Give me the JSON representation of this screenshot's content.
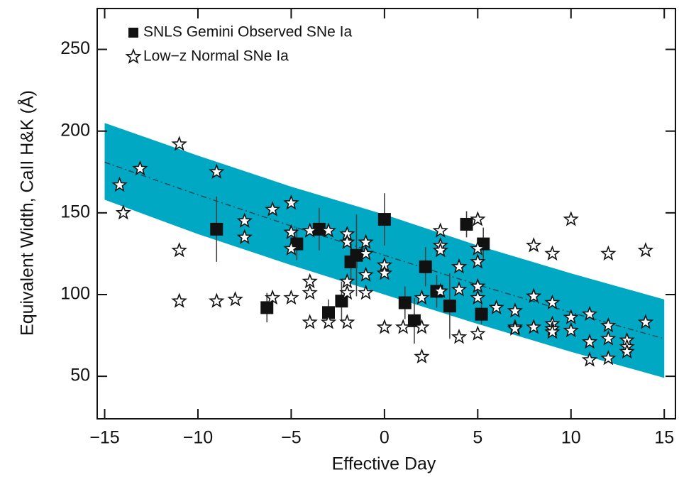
{
  "chart_data": {
    "type": "scatter",
    "x_label": "Effective Day",
    "y_label": "Equivalent Width,  CaII H&K (Å)",
    "xlim": [
      -15.4,
      15.6
    ],
    "ylim": [
      24,
      275
    ],
    "xticks": [
      {
        "value": -15,
        "label": "−15"
      },
      {
        "value": -10,
        "label": "−10"
      },
      {
        "value": -5,
        "label": "−5"
      },
      0,
      5,
      10,
      15
    ],
    "yticks": [
      50,
      100,
      150,
      200,
      250
    ],
    "legend": "upper left",
    "band": {
      "color": "#00a8c4",
      "line_color": "#1a4a55",
      "x": [
        -15,
        -10,
        -5,
        0,
        5,
        10,
        15
      ],
      "center": [
        181,
        161,
        142,
        124,
        106,
        89,
        73
      ],
      "upper": [
        205,
        185,
        166,
        149,
        130,
        113,
        97
      ],
      "lower": [
        158,
        137,
        118,
        100,
        82,
        65,
        49
      ]
    },
    "series": [
      {
        "name": "SNLS Gemini Observed SNe Ia",
        "marker": "square",
        "color": "#111111",
        "x": [
          -9,
          -6.3,
          -4.7,
          -3.5,
          -3.0,
          -2.3,
          -1.8,
          -1.5,
          0,
          1.1,
          1.6,
          2.2,
          2.8,
          3.5,
          4.4,
          5.2,
          5.3
        ],
        "values": [
          140,
          92,
          131,
          140,
          89,
          96,
          120,
          124,
          146,
          95,
          84,
          117,
          102,
          93,
          143,
          88,
          131
        ],
        "errors": [
          20,
          9,
          10,
          13,
          8,
          12,
          13,
          25,
          16,
          10,
          14,
          12,
          10,
          20,
          8,
          6,
          10
        ]
      },
      {
        "name": "Low−z Normal SNe Ia",
        "marker": "star",
        "color": "#111111",
        "x": [
          -14.2,
          -14,
          -13.1,
          -11,
          -11,
          -11,
          -9,
          -9,
          -8,
          -7.5,
          -7.5,
          -6,
          -6,
          -5,
          -5,
          -5,
          -5,
          -4,
          -4,
          -4,
          -4,
          -3,
          -3,
          -2,
          -2,
          -2,
          -2,
          -2,
          -1,
          -1,
          -1,
          -1,
          0,
          0,
          0,
          1,
          2,
          2,
          2,
          3,
          3,
          3,
          3,
          4,
          4,
          4,
          5,
          5,
          5,
          5,
          5,
          5,
          6,
          7,
          7,
          7,
          8,
          8,
          8,
          9,
          9,
          9,
          9,
          9,
          10,
          10,
          10,
          11,
          11,
          11,
          12,
          12,
          12,
          12,
          13,
          13,
          13,
          14,
          14
        ],
        "values": [
          167,
          150,
          177,
          192,
          127,
          96,
          175,
          96,
          97,
          145,
          135,
          152,
          98,
          156,
          138,
          128,
          98,
          139,
          108,
          101,
          83,
          139,
          83,
          137,
          132,
          108,
          101,
          83,
          132,
          125,
          112,
          101,
          118,
          113,
          80,
          80,
          80,
          62,
          98,
          139,
          130,
          127,
          102,
          117,
          103,
          74,
          146,
          128,
          120,
          105,
          98,
          76,
          92,
          90,
          80,
          79,
          130,
          99,
          80,
          125,
          95,
          82,
          79,
          77,
          146,
          86,
          78,
          88,
          71,
          60,
          125,
          81,
          73,
          61,
          72,
          68,
          65,
          127,
          83
        ]
      }
    ]
  }
}
